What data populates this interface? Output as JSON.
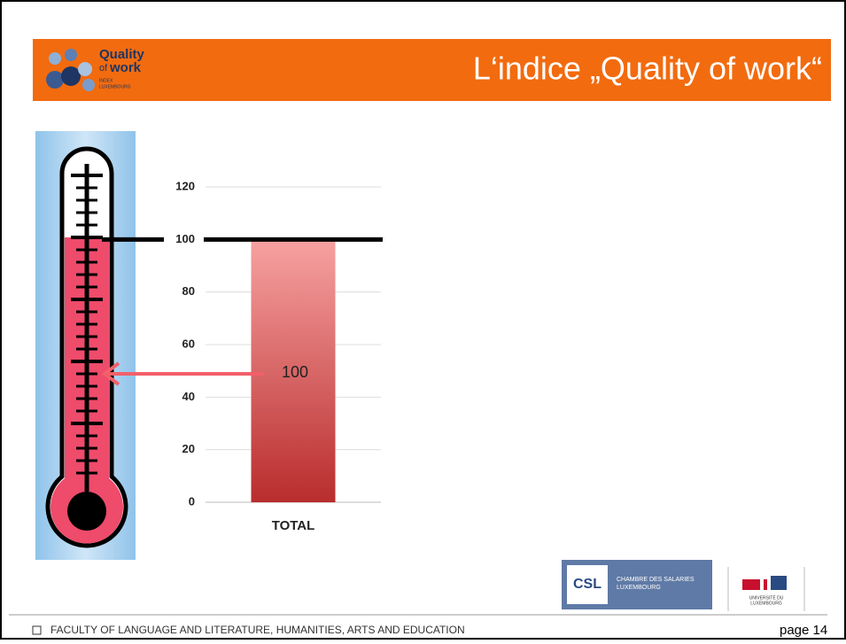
{
  "logo": {
    "line1": "Quality",
    "line2_a": "of",
    "line2_b": "work",
    "line3": "INDEX",
    "line4": "LUXEMBOURG"
  },
  "chart_data": {
    "type": "bar",
    "title": "L‘indice „Quality of work“",
    "categories": [
      "TOTAL"
    ],
    "values": [
      100
    ],
    "ylim": [
      0,
      120
    ],
    "yticks": [
      0,
      20,
      40,
      60,
      80,
      100,
      120
    ],
    "grid": true,
    "color_top": "#f7a1a1",
    "color_bottom": "#b92d2d"
  },
  "partners": {
    "csl_line1": "CHAMBRE DES SALARIES",
    "csl_line2": "LUXEMBOURG",
    "csl_mark": "CSL",
    "uni_line1": "UNIVERSITÉ DU",
    "uni_line2": "LUXEMBOURG"
  },
  "footer": {
    "faculty": "FACULTY OF LANGUAGE AND LITERATURE, HUMANITIES, ARTS AND EDUCATION",
    "page": "page 14"
  }
}
